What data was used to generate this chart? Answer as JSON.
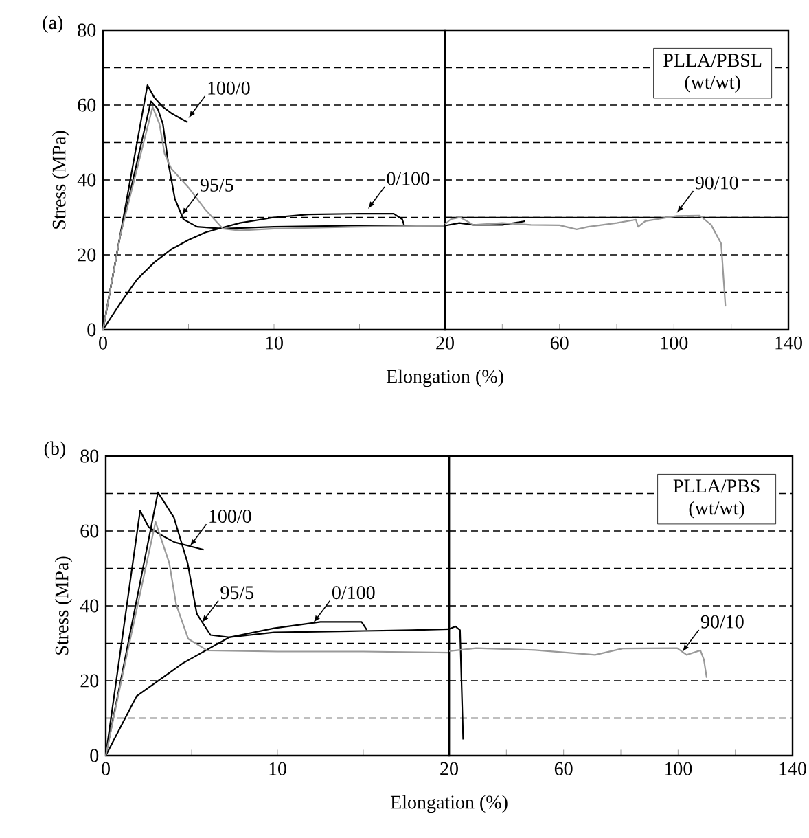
{
  "chart_data": [
    {
      "type": "line",
      "title": "(a)",
      "xlabel": "Elongation (%)",
      "ylabel": "Stress (MPa)",
      "xlim": [
        0,
        20
      ],
      "ylim": [
        0,
        80
      ],
      "xticks": [
        0,
        {
          "value": 5,
          "label": null
        },
        10,
        {
          "value": 15,
          "label": null
        },
        {
          "value": 20,
          "label": null
        }
      ],
      "yticks": [
        0,
        {
          "value": 10,
          "label": null
        },
        20,
        {
          "value": 30,
          "label": null
        },
        40,
        {
          "value": 50,
          "label": null
        },
        60,
        {
          "value": 70,
          "label": null
        },
        80
      ],
      "grid": "y",
      "series": [
        {
          "color": "#000000",
          "x": [
            0,
            2.6,
            3.0,
            3.5,
            4.0,
            4.95
          ],
          "values": [
            0,
            65.3,
            62,
            59.5,
            57.8,
            55.4
          ]
        },
        {
          "color": "#000000",
          "x": [
            0,
            1,
            2.8,
            3.2,
            3.5,
            3.8,
            4.2,
            4.7,
            5.5,
            7,
            10,
            15,
            20
          ],
          "values": [
            0,
            25,
            61,
            59,
            55,
            45,
            35,
            29.5,
            27.5,
            27,
            27.5,
            27.8,
            27.8
          ]
        },
        {
          "color": "#000000",
          "x": [
            0,
            1,
            2,
            3,
            4,
            5,
            6,
            7,
            8,
            10,
            12,
            15,
            17,
            17.5,
            17.6
          ],
          "values": [
            0,
            7,
            13.5,
            18,
            21.5,
            24,
            26,
            27.3,
            28.5,
            30,
            30.8,
            31,
            31,
            29.5,
            28
          ]
        },
        {
          "color": "#999999",
          "x": [
            0,
            1,
            2.9,
            3.3,
            3.6,
            4,
            5,
            6,
            7,
            8,
            10,
            15,
            20
          ],
          "values": [
            0,
            25,
            59.5,
            55,
            47,
            43,
            38,
            32,
            27,
            26.5,
            27,
            27.5,
            27.8
          ]
        }
      ],
      "annotations": [
        {
          "text": "100/0",
          "x": 5.0,
          "y": 56.5
        },
        {
          "text": "95/5",
          "x": 4.6,
          "y": 30.6
        },
        {
          "text": "0/100",
          "x": 15.5,
          "y": 32.3
        }
      ]
    },
    {
      "type": "line",
      "xlim": [
        20,
        140
      ],
      "ylim": [
        0,
        80
      ],
      "xticks": [
        20,
        {
          "value": 40,
          "label": null
        },
        60,
        {
          "value": 80,
          "label": null
        },
        100,
        {
          "value": 120,
          "label": null
        },
        140
      ],
      "yticks": [
        0,
        {
          "value": 10,
          "label": null
        },
        20,
        {
          "value": 30,
          "label": null
        },
        40,
        {
          "value": 50,
          "label": null
        },
        60,
        {
          "value": 70,
          "label": null
        },
        80
      ],
      "grid": "y",
      "tick_labels": "x",
      "ref_lines": [
        {
          "axis": "y",
          "value": 30,
          "color": "#000000",
          "line_style": "solid"
        }
      ],
      "series": [
        {
          "color": "#000000",
          "x": [
            20,
            25,
            30,
            40,
            48
          ],
          "values": [
            27.8,
            28.5,
            28,
            28,
            29
          ]
        },
        {
          "color": "#999999",
          "x": [
            20,
            22,
            25.3,
            30,
            40,
            50,
            60,
            66,
            70,
            80,
            86.7,
            87.5,
            90,
            101,
            109,
            113,
            116.5,
            118
          ],
          "values": [
            28.2,
            29.5,
            30,
            28,
            28.5,
            28,
            27.9,
            26.8,
            27.5,
            28.5,
            29.4,
            27.5,
            29,
            30.4,
            30.5,
            28,
            23,
            6.2
          ]
        }
      ],
      "annotations": [
        "PLLA/PBSL (wt/wt)",
        {
          "text": "90/10",
          "x": 101,
          "y": 31.2
        }
      ]
    },
    {
      "type": "line",
      "title": "(b)",
      "xlabel": "Elongation (%)",
      "ylabel": "Stress (MPa)",
      "xlim": [
        0,
        20
      ],
      "ylim": [
        0,
        80
      ],
      "xticks": [
        0,
        {
          "value": 5,
          "label": null
        },
        10,
        {
          "value": 15,
          "label": null
        },
        {
          "value": 20,
          "label": null
        }
      ],
      "yticks": [
        0,
        {
          "value": 10,
          "label": null
        },
        20,
        {
          "value": 30,
          "label": null
        },
        40,
        {
          "value": 50,
          "label": null
        },
        60,
        {
          "value": 70,
          "label": null
        },
        80
      ],
      "grid": "y",
      "series": [
        {
          "color": "#000000",
          "x": [
            0,
            2.0,
            2.5,
            3.2,
            4.0,
            5.7
          ],
          "values": [
            0,
            65.4,
            61,
            59,
            57,
            55
          ]
        },
        {
          "color": "#000000",
          "x": [
            0,
            1,
            3.04,
            3.97,
            4.77,
            5.3,
            6.1,
            7.2,
            9.8,
            15,
            17.8,
            20
          ],
          "values": [
            0,
            23,
            70.3,
            63.6,
            51.4,
            37.9,
            32.2,
            31.6,
            32.9,
            33.3,
            33.5,
            33.8
          ]
        },
        {
          "color": "#000000",
          "x": [
            0,
            1.8,
            4.5,
            7.2,
            9.8,
            12.5,
            14.9,
            15.2
          ],
          "values": [
            0,
            15.9,
            24.7,
            31.6,
            34,
            35.7,
            35.7,
            33.6
          ]
        },
        {
          "color": "#999999",
          "x": [
            0,
            1,
            2.9,
            3.7,
            4.1,
            4.8,
            5.9,
            10,
            15,
            20
          ],
          "values": [
            0,
            22,
            62.4,
            51.4,
            40.4,
            31.2,
            28.1,
            27.8,
            27.8,
            27.5
          ]
        }
      ],
      "annotations": [
        {
          "text": "100/0",
          "x": 4.9,
          "y": 55.9
        },
        {
          "text": "95/5",
          "x": 5.6,
          "y": 35.5
        },
        {
          "text": "0/100",
          "x": 12.1,
          "y": 35.5
        }
      ]
    },
    {
      "type": "line",
      "xlim": [
        20,
        140
      ],
      "ylim": [
        0,
        80
      ],
      "xticks": [
        20,
        {
          "value": 40,
          "label": null
        },
        60,
        {
          "value": 80,
          "label": null
        },
        100,
        {
          "value": 120,
          "label": null
        },
        140
      ],
      "yticks": [
        0,
        {
          "value": 10,
          "label": null
        },
        20,
        {
          "value": 30,
          "label": null
        },
        40,
        {
          "value": 50,
          "label": null
        },
        60,
        {
          "value": 70,
          "label": null
        },
        80
      ],
      "grid": "y",
      "tick_labels": "x",
      "series": [
        {
          "color": "#000000",
          "x": [
            20,
            22.2,
            23.8,
            24.9
          ],
          "values": [
            33.8,
            34.5,
            33.5,
            4.3
          ]
        },
        {
          "color": "#999999",
          "x": [
            20,
            29.4,
            50,
            71,
            80.6,
            99.7,
            103,
            107.8,
            109,
            110
          ],
          "values": [
            27.9,
            28.7,
            28.2,
            26.9,
            28.6,
            28.7,
            26.9,
            28.1,
            25.7,
            20.8
          ]
        }
      ],
      "annotations": [
        "PLLA/PBS (wt/wt)",
        {
          "text": "90/10",
          "x": 101.5,
          "y": 27.7
        }
      ]
    }
  ]
}
